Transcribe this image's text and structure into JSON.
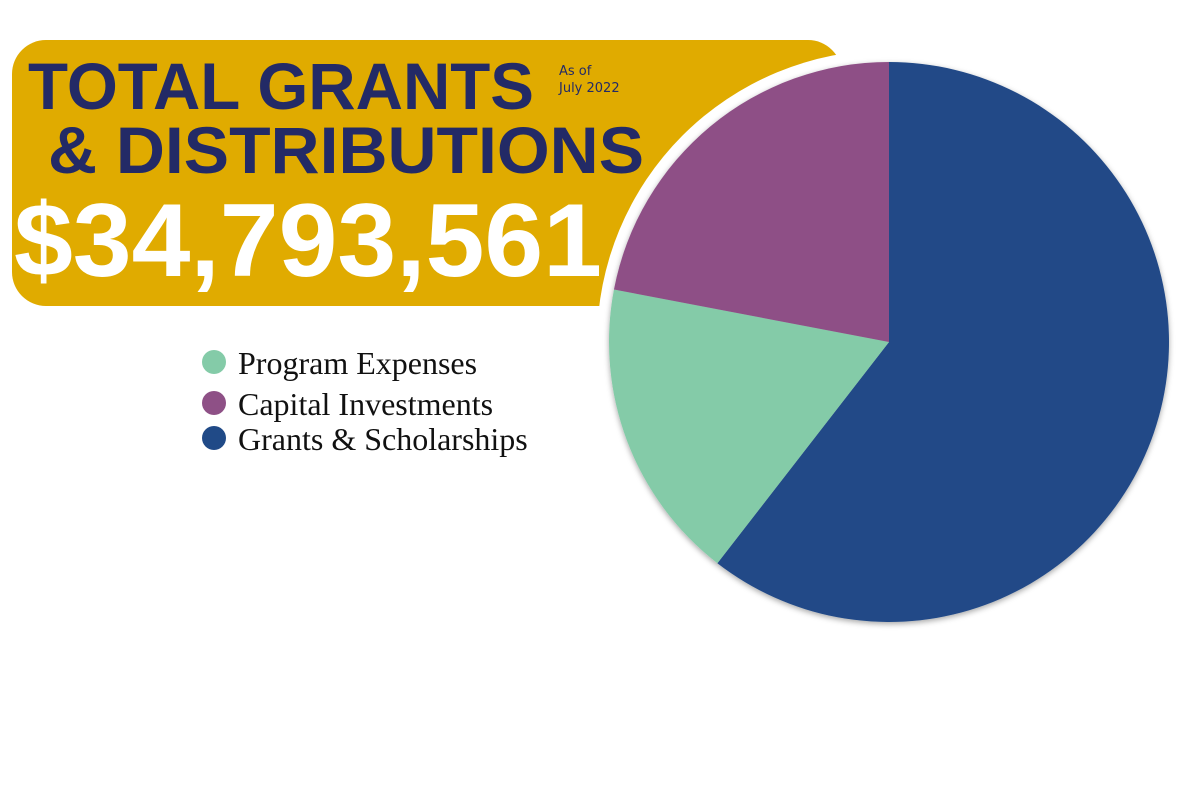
{
  "chart_data": {
    "type": "pie",
    "title_lines": [
      "TOTAL GRANTS",
      "& DISTRIBUTIONS"
    ],
    "subtitle_lines": [
      "As of",
      "July 2022"
    ],
    "total_label": "$34,793,561",
    "series": [
      {
        "name": "Program Expenses",
        "color": "#84cba8",
        "values": [
          17.5
        ]
      },
      {
        "name": "Capital Investments",
        "color": "#8e5086",
        "values": [
          22
        ]
      },
      {
        "name": "Grants & Scholarships",
        "color": "#204a87",
        "values": [
          60.5
        ]
      }
    ]
  }
}
